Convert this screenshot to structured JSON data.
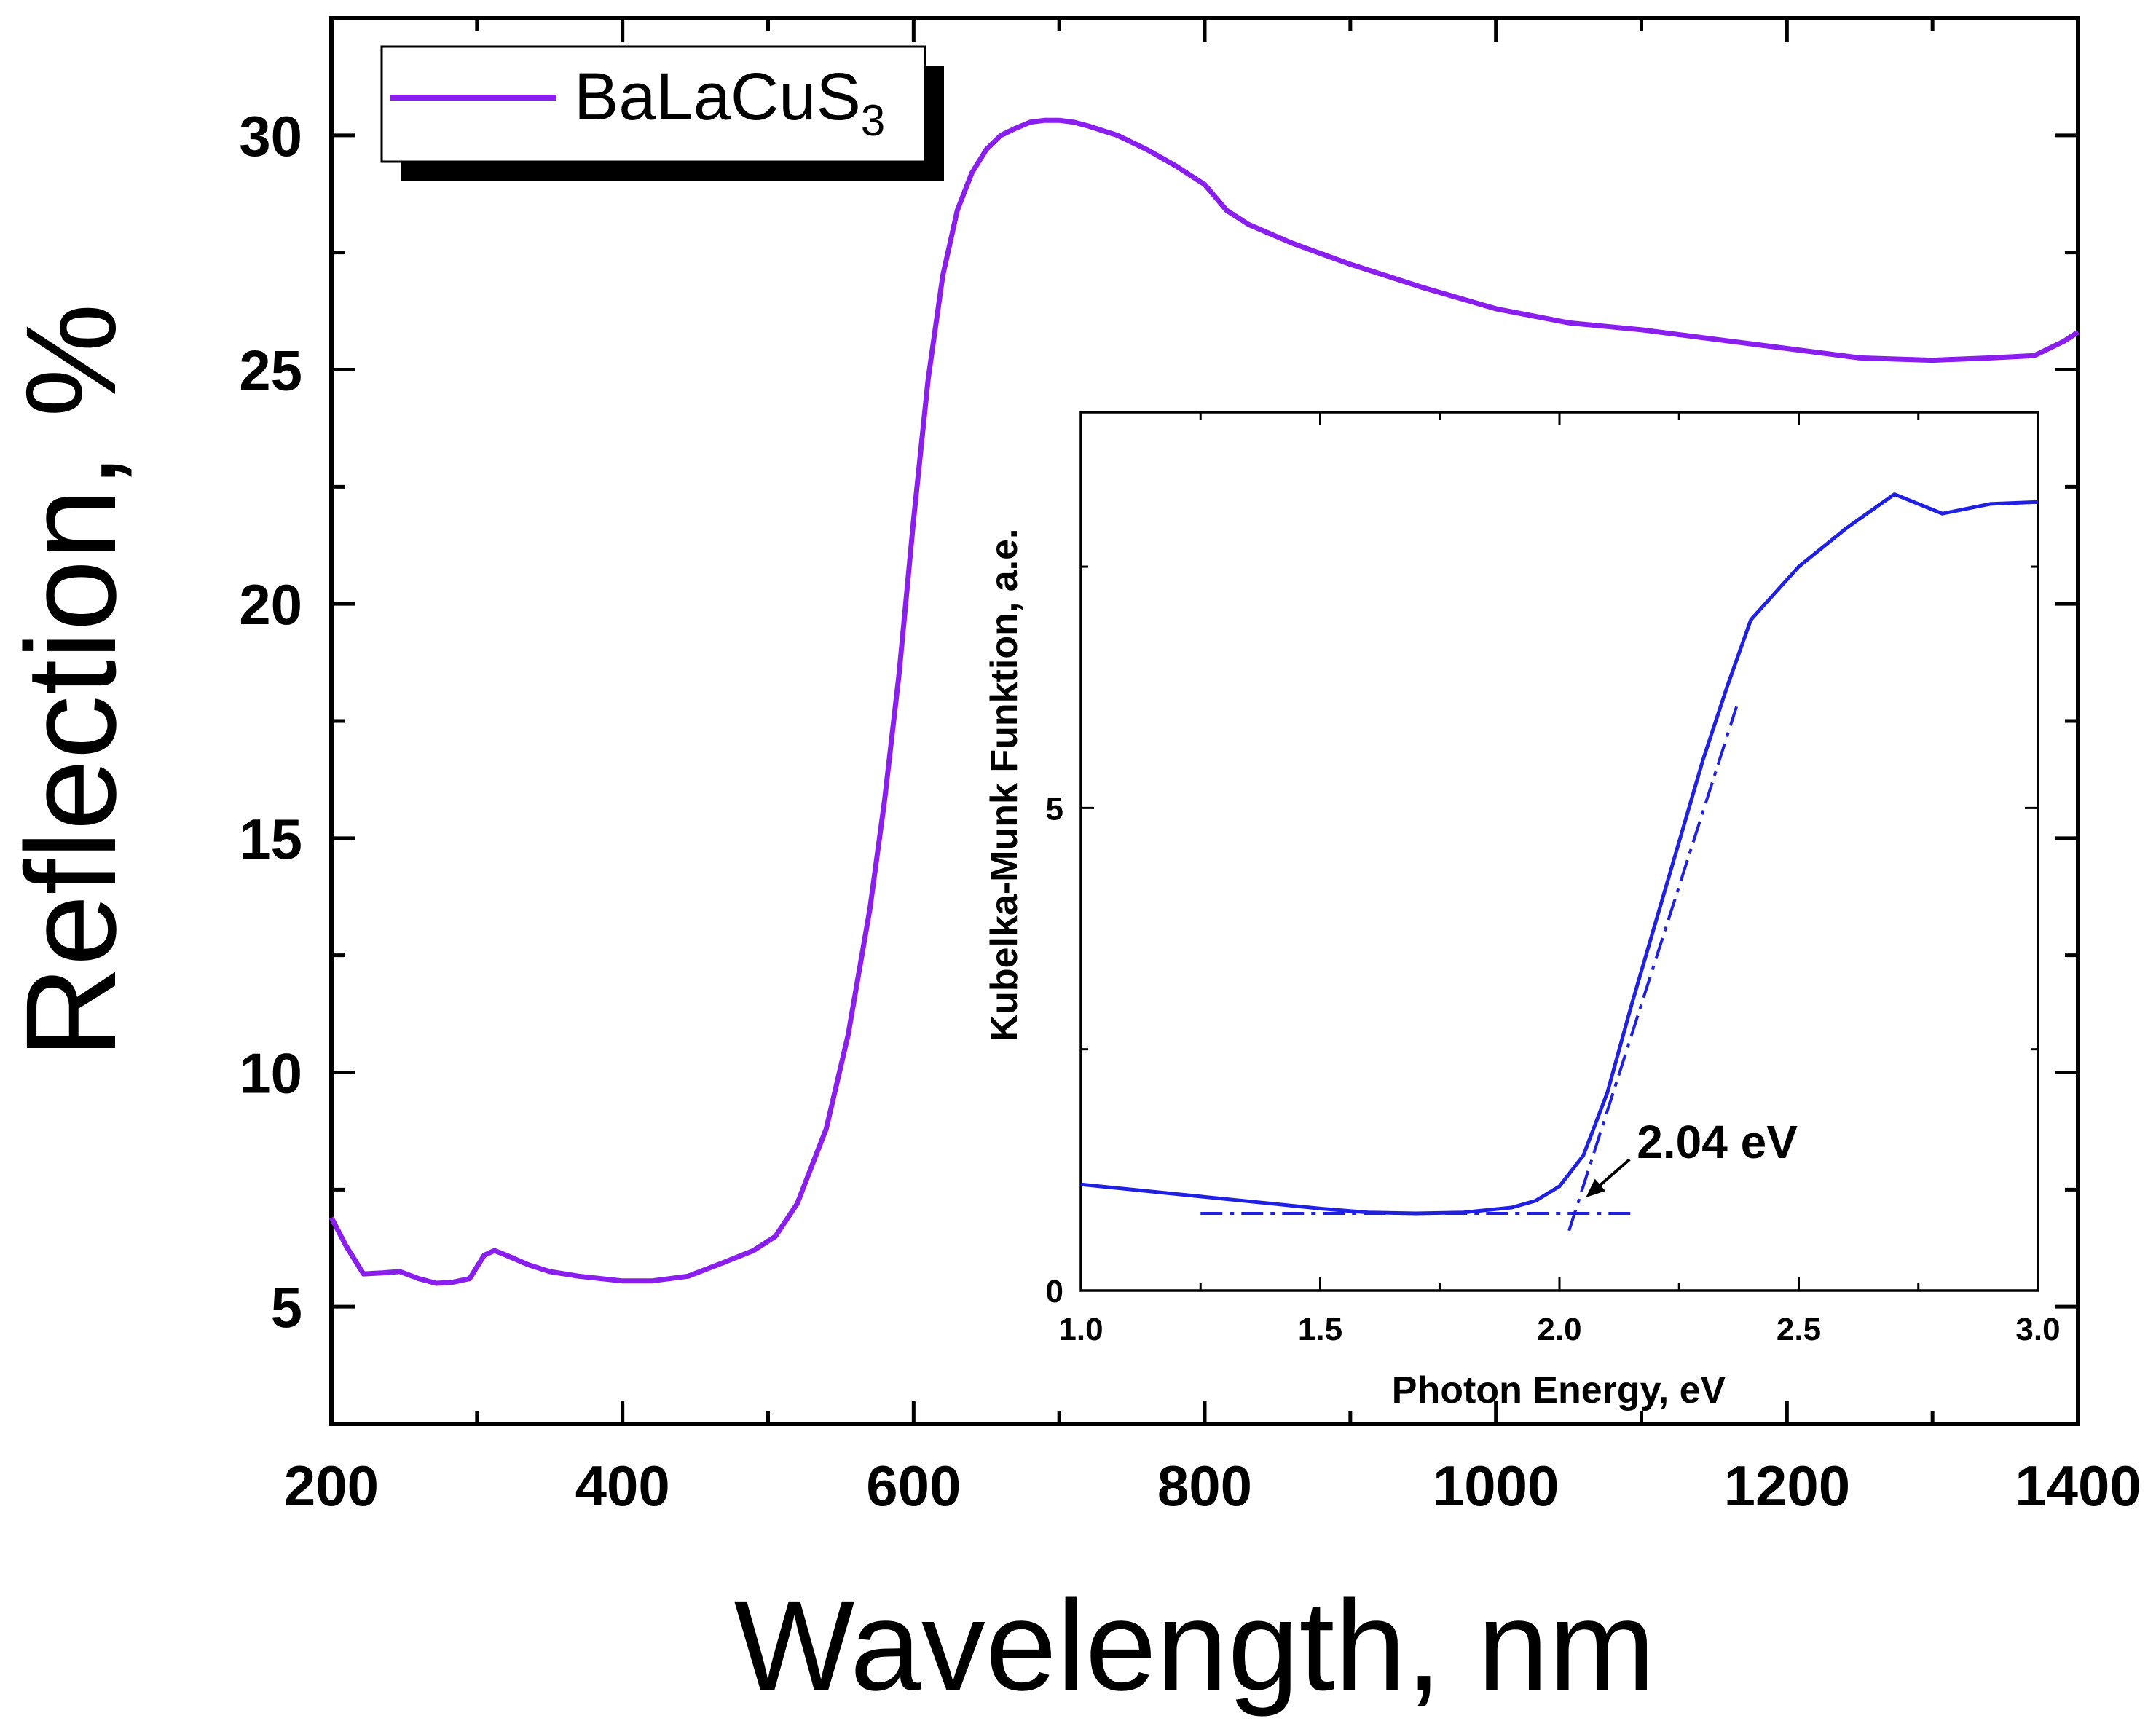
{
  "chart_data": [
    {
      "type": "line",
      "xlabel": "Wavelength, nm",
      "ylabel": "Reflection, %",
      "xlim": [
        200,
        1400
      ],
      "ylim": [
        2.5,
        32.5
      ],
      "xticks": [
        200,
        400,
        600,
        800,
        1000,
        1200,
        1400
      ],
      "yticks": [
        5,
        10,
        15,
        20,
        25,
        30
      ],
      "legend": {
        "label_main": "BaLaCuS",
        "label_sub": "3",
        "position": "top-left"
      },
      "series": [
        {
          "name": "BaLaCuS3",
          "color": "#8a1eef",
          "x": [
            200,
            210,
            222,
            235,
            247,
            260,
            272,
            283,
            295,
            305,
            312,
            320,
            335,
            350,
            370,
            400,
            420,
            445,
            470,
            490,
            505,
            520,
            540,
            555,
            570,
            580,
            590,
            600,
            610,
            620,
            630,
            640,
            650,
            660,
            670,
            680,
            690,
            700,
            710,
            720,
            740,
            760,
            780,
            800,
            815,
            830,
            860,
            900,
            950,
            1000,
            1050,
            1100,
            1150,
            1200,
            1250,
            1300,
            1340,
            1370,
            1390,
            1400
          ],
          "y": [
            6.9,
            6.3,
            5.7,
            5.72,
            5.75,
            5.6,
            5.5,
            5.52,
            5.6,
            6.1,
            6.2,
            6.1,
            5.9,
            5.75,
            5.65,
            5.55,
            5.55,
            5.65,
            5.95,
            6.2,
            6.5,
            7.2,
            8.8,
            10.8,
            13.5,
            15.8,
            18.5,
            21.8,
            24.8,
            27.0,
            28.4,
            29.2,
            29.7,
            30.0,
            30.15,
            30.28,
            30.32,
            30.32,
            30.28,
            30.2,
            30.0,
            29.7,
            29.35,
            28.95,
            28.4,
            28.1,
            27.7,
            27.25,
            26.75,
            26.3,
            26.0,
            25.85,
            25.65,
            25.45,
            25.25,
            25.2,
            25.25,
            25.3,
            25.6,
            25.8
          ]
        }
      ]
    },
    {
      "type": "line",
      "inset": true,
      "xlabel": "Photon Energy, eV",
      "ylabel": "Kubelka-Munk Funktion, a.e.",
      "xlim": [
        1.0,
        3.0
      ],
      "ylim": [
        0,
        9.1
      ],
      "xticks": [
        "1.0",
        "1.5",
        "2.0",
        "2.5",
        "3.0"
      ],
      "yticks": [
        "0",
        "5"
      ],
      "series": [
        {
          "name": "Kubelka-Munk",
          "color": "#1f1fe6",
          "x": [
            1.0,
            1.2,
            1.4,
            1.5,
            1.6,
            1.7,
            1.8,
            1.9,
            1.95,
            2.0,
            2.05,
            2.1,
            2.15,
            2.2,
            2.25,
            2.3,
            2.35,
            2.4,
            2.5,
            2.6,
            2.7,
            2.8,
            2.9,
            3.0
          ],
          "y": [
            1.1,
            1.0,
            0.9,
            0.85,
            0.81,
            0.8,
            0.81,
            0.86,
            0.93,
            1.08,
            1.4,
            2.05,
            2.95,
            3.8,
            4.65,
            5.5,
            6.25,
            6.95,
            7.5,
            7.9,
            8.25,
            8.05,
            8.15,
            8.17
          ]
        }
      ],
      "fit_lines": {
        "baseline": {
          "x": [
            1.25,
            2.15
          ],
          "y": [
            0.8,
            0.8
          ]
        },
        "tangent": {
          "x": [
            2.02,
            2.37
          ],
          "y": [
            0.62,
            6.05
          ]
        }
      },
      "annotation": {
        "text": "2.04 eV",
        "points_to_x": 2.04,
        "points_to_y": 0.8
      }
    }
  ],
  "colors": {
    "main_series": "#8a1eef",
    "inset_series": "#1f1fe6",
    "axes": "#000000"
  }
}
